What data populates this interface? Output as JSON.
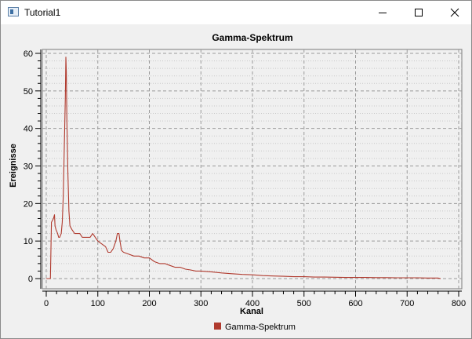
{
  "window": {
    "title": "Tutorial1",
    "icons": [
      "app-icon",
      "minimize-icon",
      "maximize-icon",
      "close-icon"
    ]
  },
  "chart_data": {
    "type": "line",
    "title": "Gamma-Spektrum",
    "xlabel": "Kanal",
    "ylabel": "Ereignisse",
    "xlim": [
      -5,
      800
    ],
    "ylim": [
      0,
      61
    ],
    "x_ticks": [
      0,
      100,
      200,
      300,
      400,
      500,
      600,
      700,
      800
    ],
    "y_ticks": [
      0,
      10,
      20,
      30,
      40,
      50,
      60
    ],
    "grid": true,
    "legend": "bottom-center",
    "series": [
      {
        "name": "Gamma-Spektrum",
        "color": "#b03a2e",
        "points": [
          [
            0,
            0
          ],
          [
            8,
            0
          ],
          [
            10,
            15
          ],
          [
            14,
            16
          ],
          [
            16,
            17
          ],
          [
            17,
            14
          ],
          [
            19,
            13
          ],
          [
            22,
            12
          ],
          [
            24,
            11
          ],
          [
            26,
            11
          ],
          [
            29,
            12
          ],
          [
            31,
            15
          ],
          [
            33,
            22
          ],
          [
            35,
            35
          ],
          [
            37,
            48
          ],
          [
            38,
            59
          ],
          [
            39,
            55
          ],
          [
            40,
            42
          ],
          [
            42,
            28
          ],
          [
            44,
            18
          ],
          [
            46,
            14
          ],
          [
            50,
            13
          ],
          [
            55,
            12
          ],
          [
            60,
            12
          ],
          [
            65,
            12
          ],
          [
            70,
            11
          ],
          [
            75,
            11
          ],
          [
            80,
            11
          ],
          [
            85,
            11
          ],
          [
            90,
            12
          ],
          [
            95,
            11
          ],
          [
            100,
            10
          ],
          [
            105,
            9.5
          ],
          [
            110,
            9
          ],
          [
            115,
            8.5
          ],
          [
            120,
            7
          ],
          [
            125,
            7
          ],
          [
            130,
            8
          ],
          [
            135,
            10
          ],
          [
            138,
            12
          ],
          [
            141,
            12
          ],
          [
            143,
            10
          ],
          [
            146,
            7.5
          ],
          [
            150,
            7
          ],
          [
            160,
            6.5
          ],
          [
            170,
            6
          ],
          [
            180,
            6
          ],
          [
            190,
            5.5
          ],
          [
            200,
            5.5
          ],
          [
            210,
            4.5
          ],
          [
            220,
            4
          ],
          [
            230,
            4
          ],
          [
            240,
            3.5
          ],
          [
            250,
            3
          ],
          [
            260,
            3
          ],
          [
            270,
            2.5
          ],
          [
            280,
            2.3
          ],
          [
            290,
            2
          ],
          [
            300,
            2
          ],
          [
            320,
            1.8
          ],
          [
            340,
            1.5
          ],
          [
            360,
            1.3
          ],
          [
            380,
            1.1
          ],
          [
            400,
            1
          ],
          [
            420,
            0.8
          ],
          [
            440,
            0.7
          ],
          [
            460,
            0.6
          ],
          [
            480,
            0.5
          ],
          [
            500,
            0.5
          ],
          [
            520,
            0.4
          ],
          [
            540,
            0.4
          ],
          [
            560,
            0.35
          ],
          [
            580,
            0.3
          ],
          [
            600,
            0.3
          ],
          [
            620,
            0.3
          ],
          [
            640,
            0.25
          ],
          [
            660,
            0.25
          ],
          [
            680,
            0.2
          ],
          [
            700,
            0.2
          ],
          [
            720,
            0.2
          ],
          [
            740,
            0.15
          ],
          [
            760,
            0.15
          ],
          [
            765,
            0
          ]
        ]
      }
    ]
  }
}
